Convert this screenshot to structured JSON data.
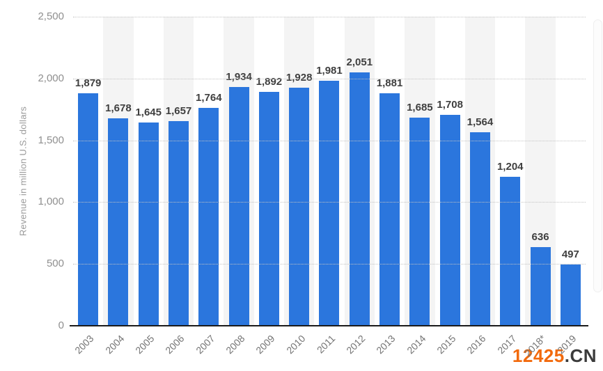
{
  "chart_data": {
    "type": "bar",
    "title": "",
    "xlabel": "",
    "ylabel": "Revenue in million U.S. dollars",
    "ylim": [
      0,
      2500
    ],
    "yticks": [
      0,
      500,
      1000,
      1500,
      2000,
      2500
    ],
    "ytick_labels": [
      "0",
      "500",
      "1,000",
      "1,500",
      "2,000",
      "2,500"
    ],
    "grid": "horizontal-dotted",
    "legend": "none",
    "categories": [
      "2003",
      "2004",
      "2005",
      "2006",
      "2007",
      "2008",
      "2009",
      "2010",
      "2011",
      "2012",
      "2013",
      "2014",
      "2015",
      "2016",
      "2017",
      "2018*",
      "2019"
    ],
    "values": [
      1879,
      1678,
      1645,
      1657,
      1764,
      1934,
      1892,
      1928,
      1981,
      2051,
      1881,
      1685,
      1708,
      1564,
      1204,
      636,
      497
    ],
    "value_labels": [
      "1,879",
      "1,678",
      "1,645",
      "1,657",
      "1,764",
      "1,934",
      "1,892",
      "1,928",
      "1,981",
      "2,051",
      "1,881",
      "1,685",
      "1,708",
      "1,564",
      "1,204",
      "636",
      "497"
    ],
    "bar_color": "#2b76dd",
    "band_color": "#f4f4f4",
    "gridline_color": "#c3c3c3",
    "axis_color": "#1a1a1a"
  },
  "watermark": {
    "primary": "12425",
    "secondary": ".CN",
    "primary_color": "#f26a0d",
    "secondary_color": "#3b3b3b"
  }
}
